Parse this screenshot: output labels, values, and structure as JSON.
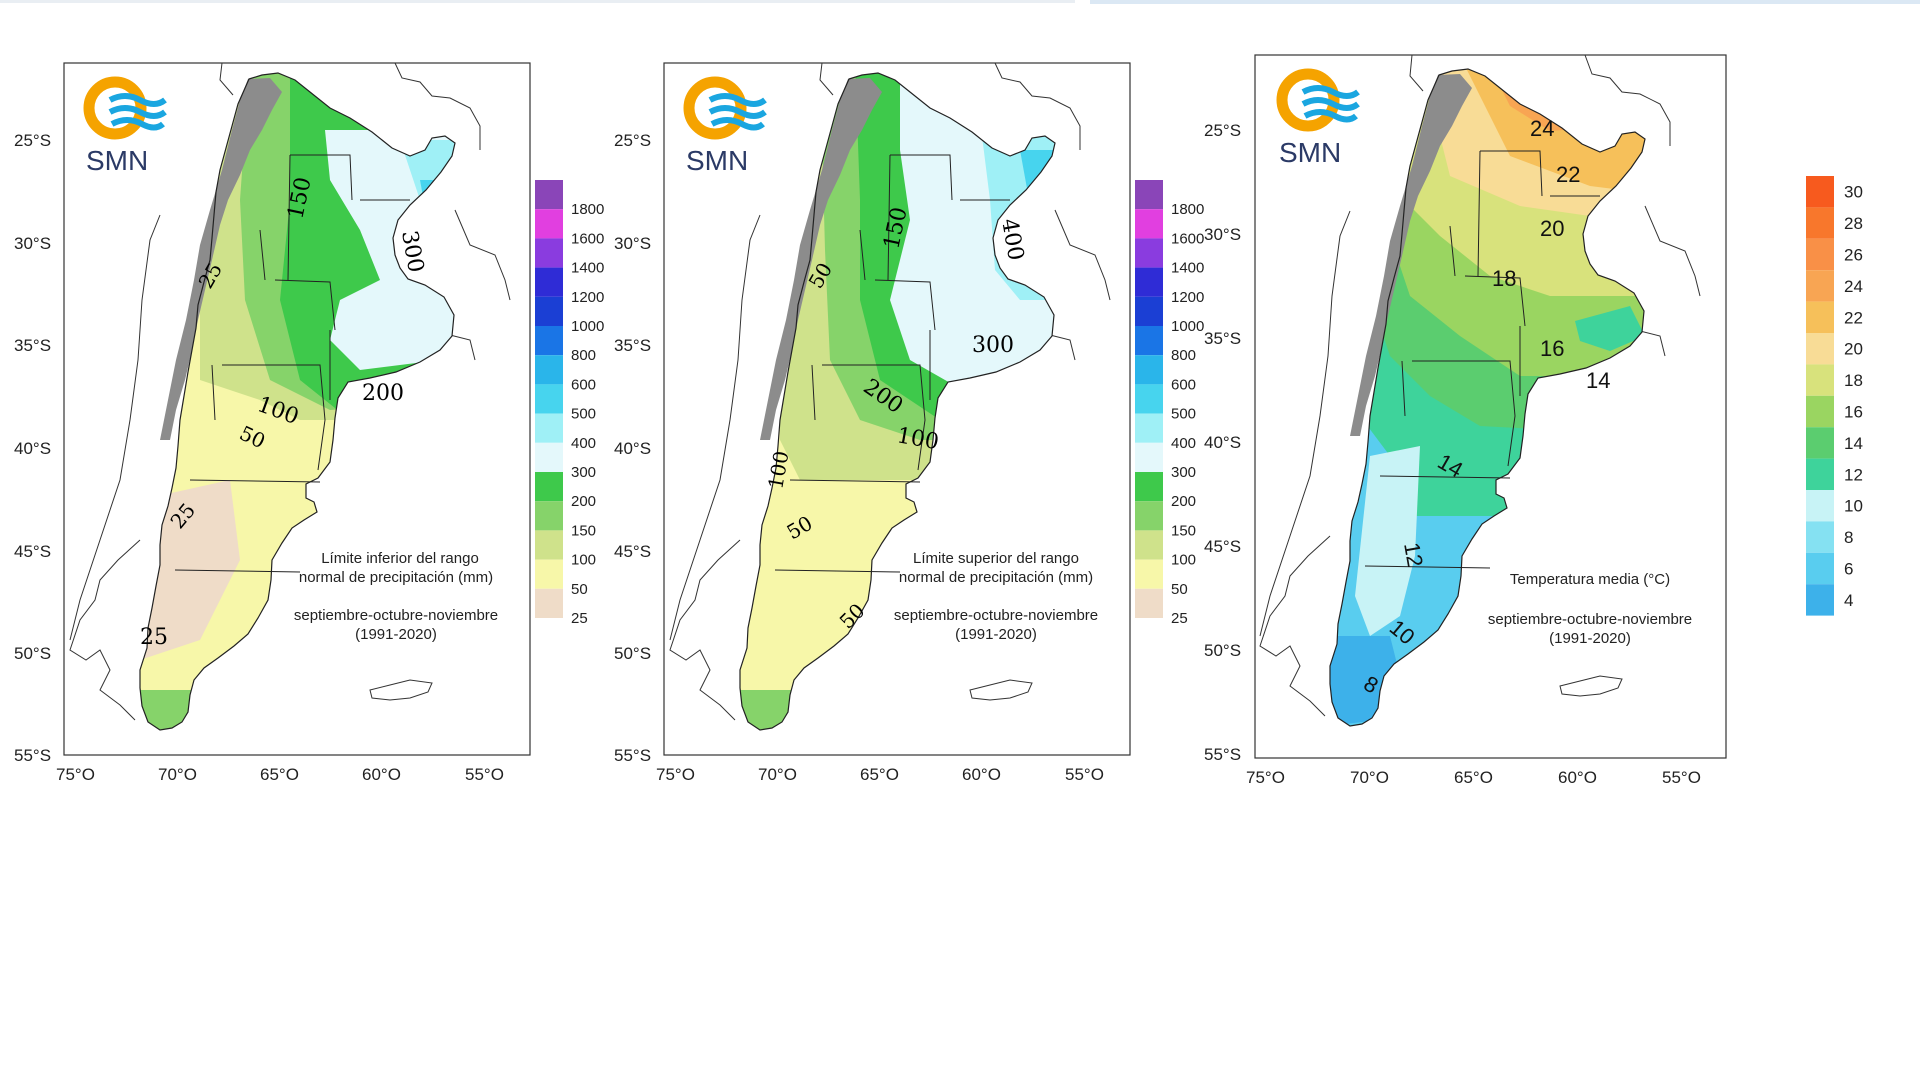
{
  "brand": {
    "logo_text": "SMN"
  },
  "colors": {
    "dry_25": "#efdcc8",
    "p50": "#f7f7a9",
    "p100": "#cfe28b",
    "p150": "#86d36a",
    "p200": "#3ec94b",
    "p300": "#e4f8fb",
    "p400": "#9ff0f6",
    "p500": "#47d4ee",
    "p600": "#2ab5ea",
    "p800": "#1a75e6",
    "p1000": "#1b3fd4",
    "p1200": "#2f2cd6",
    "p1400": "#8a3cdf",
    "p1600": "#e13fe0",
    "p1800": "#8a45b8",
    "andes_gray": "#8c8c8c",
    "logo_orange": "#f5a300",
    "logo_blue": "#1aa6e0"
  },
  "axes": {
    "lat_ticks": [
      "25°S",
      "30°S",
      "35°S",
      "40°S",
      "45°S",
      "50°S",
      "55°S"
    ],
    "lon_ticks": [
      "75°O",
      "70°O",
      "65°O",
      "60°O",
      "55°O"
    ]
  },
  "maps": [
    {
      "id": "precip-lower",
      "caption_line1": "Límite inferior del rango",
      "caption_line2": "normal de precipitación (mm)",
      "period": "septiembre-octubre-noviembre",
      "base_period": "(1991-2020)",
      "contour_labels": [
        "150",
        "300",
        "25",
        "100",
        "50",
        "200",
        "25",
        "25"
      ],
      "legend_values": [
        "1800",
        "1600",
        "1400",
        "1200",
        "1000",
        "800",
        "600",
        "500",
        "400",
        "300",
        "200",
        "150",
        "100",
        "50",
        "25"
      ]
    },
    {
      "id": "precip-upper",
      "caption_line1": "Límite superior del rango",
      "caption_line2": "normal de precipitación (mm)",
      "period": "septiembre-octubre-noviembre",
      "base_period": "(1991-2020)",
      "contour_labels": [
        "150",
        "400",
        "50",
        "300",
        "200",
        "100",
        "100",
        "50",
        "50"
      ],
      "legend_values": [
        "1800",
        "1600",
        "1400",
        "1200",
        "1000",
        "800",
        "600",
        "500",
        "400",
        "300",
        "200",
        "150",
        "100",
        "50",
        "25"
      ]
    },
    {
      "id": "temp-mean",
      "caption_line1": "Temperatura media (°C)",
      "period": "septiembre-octubre-noviembre",
      "base_period": "(1991-2020)",
      "contour_labels": [
        "24",
        "22",
        "20",
        "18",
        "16",
        "14",
        "14",
        "12",
        "10",
        "8"
      ],
      "legend_values": [
        "30",
        "28",
        "26",
        "24",
        "22",
        "20",
        "18",
        "16",
        "14",
        "12",
        "10",
        "8",
        "6",
        "4"
      ],
      "legend_colors": [
        "#f75a1e",
        "#f8772c",
        "#f99047",
        "#f8a553",
        "#f6c05a",
        "#f8dc96",
        "#d8e27c",
        "#9ad561",
        "#5bcd6f",
        "#3ed39b",
        "#c8f3f6",
        "#85e1f2",
        "#59cdef",
        "#3db1ea"
      ]
    }
  ]
}
